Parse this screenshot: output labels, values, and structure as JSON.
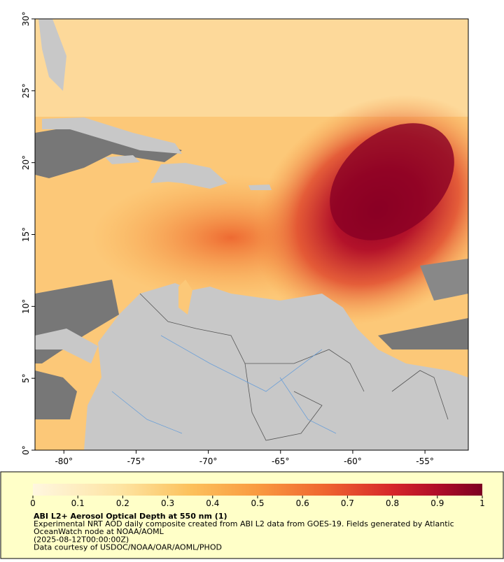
{
  "map": {
    "xlim": [
      -82,
      -52
    ],
    "ylim": [
      0,
      30
    ],
    "xticks": [
      {
        "value": -80,
        "label": "-80°"
      },
      {
        "value": -75,
        "label": "-75°"
      },
      {
        "value": -70,
        "label": "-70°"
      },
      {
        "value": -65,
        "label": "-65°"
      },
      {
        "value": -60,
        "label": "-60°"
      },
      {
        "value": -55,
        "label": "-55°"
      }
    ],
    "yticks": [
      {
        "value": 0,
        "label": "0°"
      },
      {
        "value": 5,
        "label": "5°"
      },
      {
        "value": 10,
        "label": "10°"
      },
      {
        "value": 15,
        "label": "15°"
      },
      {
        "value": 20,
        "label": "20°"
      },
      {
        "value": 25,
        "label": "25°"
      },
      {
        "value": 30,
        "label": "30°"
      }
    ]
  },
  "colorbar": {
    "lim": [
      0,
      1
    ],
    "ticks": [
      0,
      0.1,
      0.2,
      0.3,
      0.4,
      0.5,
      0.6,
      0.7,
      0.8,
      0.9,
      1
    ]
  },
  "caption": {
    "title": "ABI L2+ Aerosol Optical Depth at 550 nm (1)",
    "lines": [
      "Experimental NRT AOD daily composite created from ABI L2 data from GOES-19. Fields generated by Atlantic",
      "OceanWatch node at NOAA/AOML",
      "(2025-08-12T00:00:00Z)",
      "Data courtesy of USDOC/NOAA/OAR/AOML/PHOD"
    ]
  }
}
